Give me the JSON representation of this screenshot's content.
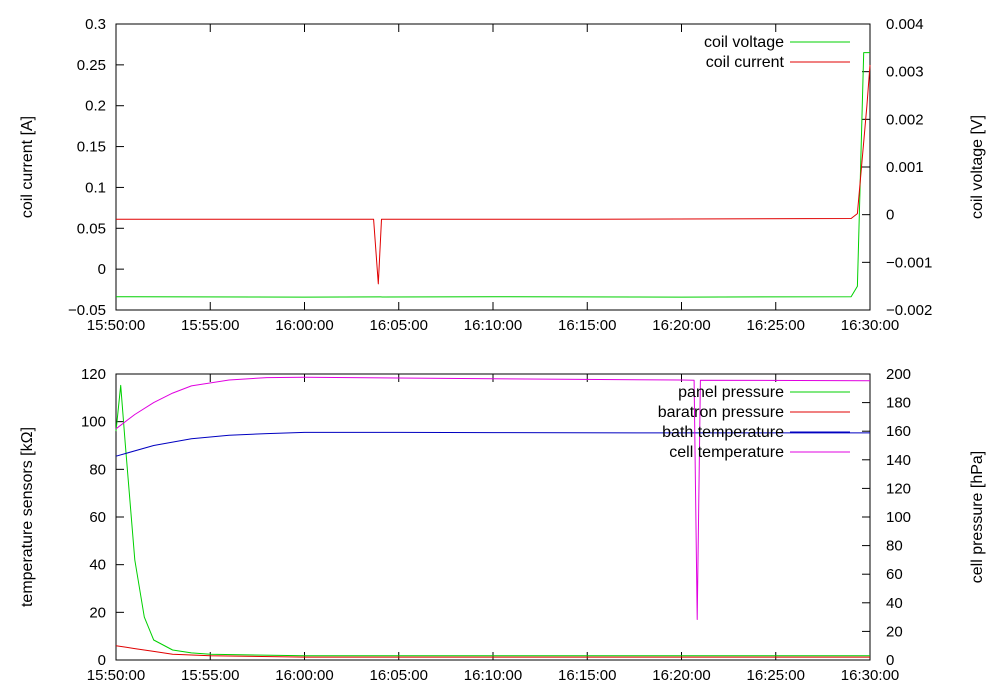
{
  "colors": {
    "coil_voltage": "#00d000",
    "coil_current": "#e00000",
    "panel_pressure": "#00d000",
    "baratron_pressure": "#e00000",
    "bath_temperature": "#0000c0",
    "cell_temperature": "#e000e0"
  },
  "chart_data": [
    {
      "type": "line",
      "grid": false,
      "legend_placement": "top-right",
      "xlim": [
        "15:50:00",
        "16:30:00"
      ],
      "x_tick_labels": [
        "15:50:00",
        "15:55:00",
        "16:00:00",
        "16:05:00",
        "16:10:00",
        "16:15:00",
        "16:20:00",
        "16:25:00",
        "16:30:00"
      ],
      "ylabel": "coil current [A]",
      "ylim": [
        -0.05,
        0.3
      ],
      "y_tick_labels": [
        "−0.05",
        "0",
        "0.05",
        "0.1",
        "0.15",
        "0.2",
        "0.25",
        "0.3"
      ],
      "y2label": "coil voltage [V]",
      "y2lim": [
        -0.002,
        0.004
      ],
      "y2_tick_labels": [
        "−0.002",
        "−0.001",
        "0",
        "0.001",
        "0.002",
        "0.003",
        "0.004"
      ],
      "series": [
        {
          "name": "coil voltage",
          "axis": "y2",
          "x": [
            "15:50:00",
            "16:00:00",
            "16:10:00",
            "16:20:00",
            "16:29:00",
            "16:29:20",
            "16:29:40",
            "16:30:00"
          ],
          "values": [
            -0.00172,
            -0.00173,
            -0.00172,
            -0.00173,
            -0.00172,
            -0.0015,
            0.0034,
            0.0034
          ]
        },
        {
          "name": "coil current",
          "axis": "y",
          "x": [
            "15:50:00",
            "16:00:00",
            "16:03:40",
            "16:03:55",
            "16:04:05",
            "16:04:15",
            "16:15:00",
            "16:29:00",
            "16:29:20",
            "16:29:50",
            "16:30:00"
          ],
          "values": [
            0.061,
            0.061,
            0.061,
            -0.018,
            0.061,
            0.061,
            0.061,
            0.062,
            0.068,
            0.2,
            0.25
          ]
        }
      ]
    },
    {
      "type": "line",
      "grid": false,
      "legend_placement": "top-right",
      "xlim": [
        "15:50:00",
        "16:30:00"
      ],
      "x_tick_labels": [
        "15:50:00",
        "15:55:00",
        "16:00:00",
        "16:05:00",
        "16:10:00",
        "16:15:00",
        "16:20:00",
        "16:25:00",
        "16:30:00"
      ],
      "ylabel": "temperature sensors [kΩ]",
      "ylim": [
        0,
        120
      ],
      "y_tick_labels": [
        "0",
        "20",
        "40",
        "60",
        "80",
        "100",
        "120"
      ],
      "y2label": "cell pressure [hPa]",
      "y2lim": [
        0,
        200
      ],
      "y2_tick_labels": [
        "0",
        "20",
        "40",
        "60",
        "80",
        "100",
        "120",
        "140",
        "160",
        "180",
        "200"
      ],
      "series": [
        {
          "name": "panel pressure",
          "axis": "y2",
          "x": [
            "15:50:00",
            "15:50:15",
            "15:50:30",
            "15:51:00",
            "15:51:30",
            "15:52:00",
            "15:53:00",
            "15:54:00",
            "15:55:00",
            "16:00:00",
            "16:10:00",
            "16:20:00",
            "16:30:00"
          ],
          "values": [
            160,
            192,
            150,
            70,
            30,
            14,
            7,
            5,
            4,
            3,
            3,
            3,
            3
          ]
        },
        {
          "name": "baratron pressure",
          "axis": "y2",
          "x": [
            "15:50:00",
            "15:51:00",
            "15:52:00",
            "15:53:00",
            "15:55:00",
            "16:00:00",
            "16:10:00",
            "16:20:00",
            "16:30:00"
          ],
          "values": [
            10,
            8,
            6,
            4,
            3,
            2,
            2,
            2,
            2
          ]
        },
        {
          "name": "bath temperature",
          "axis": "y",
          "x": [
            "15:50:00",
            "15:52:00",
            "15:54:00",
            "15:56:00",
            "15:58:00",
            "16:00:00",
            "16:05:00",
            "16:10:00",
            "16:20:00",
            "16:30:00"
          ],
          "values": [
            85.5,
            90,
            92.8,
            94.3,
            95,
            95.5,
            95.5,
            95.4,
            95.3,
            95.3
          ]
        },
        {
          "name": "cell temperature",
          "axis": "y",
          "x": [
            "15:50:00",
            "15:51:00",
            "15:52:00",
            "15:53:00",
            "15:54:00",
            "15:56:00",
            "15:58:00",
            "16:00:00",
            "16:10:00",
            "16:20:00",
            "16:20:40",
            "16:20:50",
            "16:21:00",
            "16:30:00"
          ],
          "values": [
            97,
            103,
            108,
            112,
            115,
            117.5,
            118.5,
            118.6,
            118,
            117.5,
            117.4,
            17,
            117.4,
            117.2
          ]
        }
      ]
    }
  ]
}
